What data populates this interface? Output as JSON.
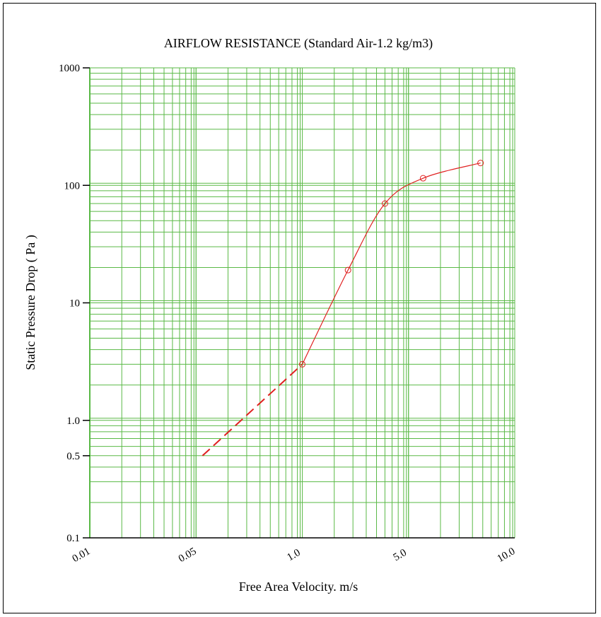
{
  "chart_data": {
    "type": "line",
    "title": "AIRFLOW RESISTANCE (Standard Air-1.2 kg/m3)",
    "xlabel": "Free Area Velocity. m/s",
    "ylabel": "Static Pressure Drop ( Pa )",
    "yscale": "log",
    "ylim": [
      0.1,
      1000
    ],
    "grid": true,
    "x_ticks": [
      "0.01",
      "0.05",
      "1.0",
      "5.0",
      "10.0"
    ],
    "y_ticks": [
      "1000",
      "100",
      "10",
      "1.0",
      "0.5",
      "0.1"
    ],
    "series": [
      {
        "line": "solid",
        "points": [
          {
            "x": 1.0,
            "y": 3.0
          },
          {
            "x": 2.0,
            "y": 19
          },
          {
            "x": 3.5,
            "y": 70
          },
          {
            "x": 5.5,
            "y": 115
          },
          {
            "x": 8.0,
            "y": 155
          }
        ]
      },
      {
        "line": "dashed",
        "points": [
          {
            "x": 0.06,
            "y": 0.5
          },
          {
            "x": 1.0,
            "y": 3.0
          }
        ]
      }
    ],
    "colors": {
      "grid": "#5ab946",
      "line": "#e02020",
      "axis": "#000000"
    }
  }
}
